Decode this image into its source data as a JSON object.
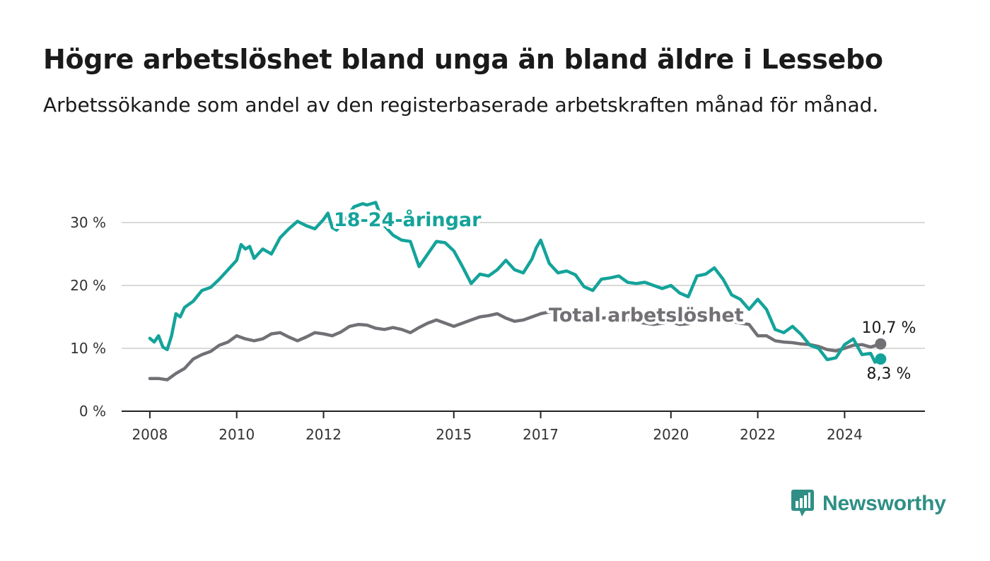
{
  "chart_data": {
    "type": "line",
    "title": "Högre arbetslöshet bland unga än bland äldre i Lessebo",
    "subtitle": "Arbetssökande som andel av den registerbaserade arbetskraften månad för månad.",
    "xlabel": "",
    "ylabel": "",
    "ylim": [
      0,
      30
    ],
    "y_ticks": [
      {
        "value": 0,
        "label": "0 %"
      },
      {
        "value": 10,
        "label": "10 %"
      },
      {
        "value": 20,
        "label": "20 %"
      },
      {
        "value": 30,
        "label": "30 %"
      }
    ],
    "x_ticks": [
      {
        "value": 2008,
        "label": "2008"
      },
      {
        "value": 2010,
        "label": "2010"
      },
      {
        "value": 2012,
        "label": "2012"
      },
      {
        "value": 2015,
        "label": "2015"
      },
      {
        "value": 2017,
        "label": "2017"
      },
      {
        "value": 2020,
        "label": "2020"
      },
      {
        "value": 2022,
        "label": "2022"
      },
      {
        "value": 2024,
        "label": "2024"
      }
    ],
    "grid": true,
    "legend": "inline labels",
    "series": [
      {
        "name": "18-24-åringar",
        "color": "#14a39a",
        "x": [
          2008.0,
          2008.1,
          2008.2,
          2008.3,
          2008.4,
          2008.5,
          2008.6,
          2008.7,
          2008.8,
          2009.0,
          2009.2,
          2009.4,
          2009.6,
          2009.8,
          2010.0,
          2010.1,
          2010.2,
          2010.3,
          2010.4,
          2010.6,
          2010.8,
          2011.0,
          2011.2,
          2011.4,
          2011.6,
          2011.8,
          2012.0,
          2012.1,
          2012.2,
          2012.3,
          2012.5,
          2012.7,
          2012.9,
          2013.0,
          2013.2,
          2013.4,
          2013.6,
          2013.8,
          2014.0,
          2014.2,
          2014.4,
          2014.6,
          2014.8,
          2015.0,
          2015.2,
          2015.4,
          2015.6,
          2015.8,
          2016.0,
          2016.2,
          2016.4,
          2016.6,
          2016.8,
          2016.9,
          2017.0,
          2017.2,
          2017.4,
          2017.6,
          2017.8,
          2018.0,
          2018.2,
          2018.4,
          2018.6,
          2018.8,
          2019.0,
          2019.2,
          2019.4,
          2019.6,
          2019.8,
          2020.0,
          2020.2,
          2020.4,
          2020.6,
          2020.8,
          2021.0,
          2021.2,
          2021.4,
          2021.6,
          2021.8,
          2022.0,
          2022.2,
          2022.4,
          2022.6,
          2022.8,
          2023.0,
          2023.2,
          2023.4,
          2023.6,
          2023.8,
          2024.0,
          2024.2,
          2024.4,
          2024.6,
          2024.7,
          2024.83
        ],
        "y": [
          11.6,
          11.0,
          12.0,
          10.2,
          9.8,
          12.0,
          15.5,
          15.0,
          16.5,
          17.5,
          19.2,
          19.7,
          21.0,
          22.5,
          24.0,
          26.5,
          25.8,
          26.2,
          24.3,
          25.8,
          25.0,
          27.6,
          29.0,
          30.2,
          29.5,
          29.0,
          30.5,
          31.5,
          29.2,
          28.8,
          30.5,
          32.5,
          33.0,
          32.8,
          33.2,
          29.5,
          28.0,
          27.2,
          27.0,
          23.0,
          25.0,
          27.0,
          26.8,
          25.5,
          23.0,
          20.3,
          21.8,
          21.5,
          22.5,
          24.0,
          22.5,
          22.0,
          24.2,
          26.0,
          27.2,
          23.5,
          22.0,
          22.3,
          21.7,
          19.8,
          19.2,
          21.0,
          21.2,
          21.5,
          20.5,
          20.3,
          20.5,
          20.0,
          19.5,
          20.0,
          18.8,
          18.2,
          21.5,
          21.8,
          22.8,
          21.0,
          18.5,
          17.8,
          16.2,
          17.8,
          16.2,
          13.0,
          12.5,
          13.5,
          12.2,
          10.5,
          10.0,
          8.2,
          8.5,
          10.6,
          11.5,
          9.0,
          9.2,
          7.8,
          8.3
        ]
      },
      {
        "name": "Total arbetslöshet",
        "color": "#727075",
        "x": [
          2008.0,
          2008.2,
          2008.4,
          2008.6,
          2008.8,
          2009.0,
          2009.2,
          2009.4,
          2009.6,
          2009.8,
          2010.0,
          2010.2,
          2010.4,
          2010.6,
          2010.8,
          2011.0,
          2011.2,
          2011.4,
          2011.6,
          2011.8,
          2012.0,
          2012.2,
          2012.4,
          2012.6,
          2012.8,
          2013.0,
          2013.2,
          2013.4,
          2013.6,
          2013.8,
          2014.0,
          2014.2,
          2014.4,
          2014.6,
          2014.8,
          2015.0,
          2015.2,
          2015.4,
          2015.6,
          2015.8,
          2016.0,
          2016.2,
          2016.4,
          2016.6,
          2016.8,
          2017.0,
          2017.2,
          2017.4,
          2017.6,
          2017.8,
          2018.0,
          2018.2,
          2018.4,
          2018.6,
          2018.8,
          2019.0,
          2019.2,
          2019.4,
          2019.6,
          2019.8,
          2020.0,
          2020.2,
          2020.4,
          2020.6,
          2020.8,
          2021.0,
          2021.2,
          2021.4,
          2021.6,
          2021.8,
          2022.0,
          2022.2,
          2022.4,
          2022.6,
          2022.8,
          2023.0,
          2023.2,
          2023.4,
          2023.6,
          2023.8,
          2024.0,
          2024.2,
          2024.4,
          2024.6,
          2024.83
        ],
        "y": [
          5.2,
          5.2,
          5.0,
          6.0,
          6.8,
          8.3,
          9.0,
          9.5,
          10.5,
          11.0,
          12.0,
          11.5,
          11.2,
          11.5,
          12.3,
          12.5,
          11.8,
          11.2,
          11.8,
          12.5,
          12.3,
          12.0,
          12.6,
          13.5,
          13.8,
          13.7,
          13.2,
          13.0,
          13.3,
          13.0,
          12.5,
          13.3,
          14.0,
          14.5,
          14.0,
          13.5,
          14.0,
          14.5,
          15.0,
          15.2,
          15.5,
          14.8,
          14.3,
          14.5,
          15.0,
          15.5,
          15.8,
          15.6,
          15.3,
          15.0,
          14.8,
          14.6,
          14.8,
          14.9,
          15.0,
          14.5,
          14.2,
          14.0,
          13.8,
          14.0,
          14.2,
          13.8,
          13.9,
          14.4,
          14.6,
          14.8,
          14.5,
          14.3,
          14.0,
          13.8,
          12.0,
          12.0,
          11.2,
          11.0,
          10.9,
          10.7,
          10.6,
          10.3,
          9.8,
          9.6,
          10.0,
          10.5,
          10.6,
          10.2,
          10.7
        ]
      }
    ],
    "annotations": [
      {
        "text": "18-24-åringar",
        "series": 0
      },
      {
        "text": "Total arbetslöshet",
        "series": 1
      },
      {
        "text": "10,7 %",
        "series": 1,
        "position": "end-above"
      },
      {
        "text": "8,3 %",
        "series": 0,
        "position": "end-below"
      }
    ]
  },
  "brand": {
    "name": "Newsworthy"
  }
}
